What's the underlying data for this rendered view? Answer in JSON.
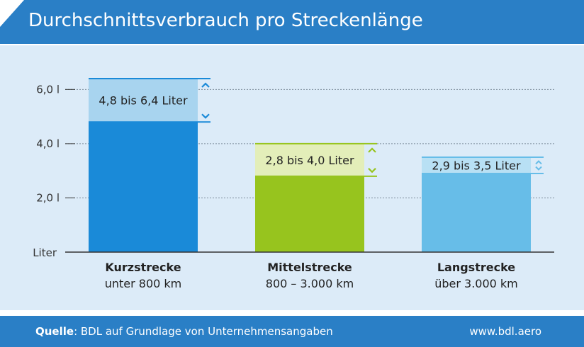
{
  "header": {
    "title": "Durchschnittsverbrauch pro Streckenlänge"
  },
  "footer": {
    "source_label": "Quelle",
    "source_text": ": BDL auf Grundlage von Unternehmensangaben",
    "url": "www.bdl.aero"
  },
  "colors": {
    "header": "#2a7fc6",
    "panel": "#dcebf8"
  },
  "chart_data": {
    "type": "bar",
    "title": "Durchschnittsverbrauch pro Streckenlänge",
    "ylabel": "Liter",
    "ylim": [
      0,
      6.4
    ],
    "yticks": [
      {
        "value": 2.0,
        "label": "2,0 l"
      },
      {
        "value": 4.0,
        "label": "4,0 l"
      },
      {
        "value": 6.0,
        "label": "6,0 l"
      }
    ],
    "grid": true,
    "categories": [
      "Kurzstrecke",
      "Mittelstrecke",
      "Langstrecke"
    ],
    "subtitles": [
      "unter 800 km",
      "800 – 3.000 km",
      "über 3.000 km"
    ],
    "low": [
      4.8,
      2.8,
      2.9
    ],
    "high": [
      6.4,
      4.0,
      3.5
    ],
    "range_labels": [
      "4,8 bis 6,4 Liter",
      "2,8 bis 4,0 Liter",
      "2,9 bis 3,5 Liter"
    ],
    "bar_colors": [
      "#1a8ad8",
      "#97c41e",
      "#67bde8"
    ],
    "range_colors": [
      "#a8d4ef",
      "#e3eeb9",
      "#b8e0f4"
    ],
    "marker_colors": [
      "#1a8ad8",
      "#97c41e",
      "#67bde8"
    ]
  }
}
